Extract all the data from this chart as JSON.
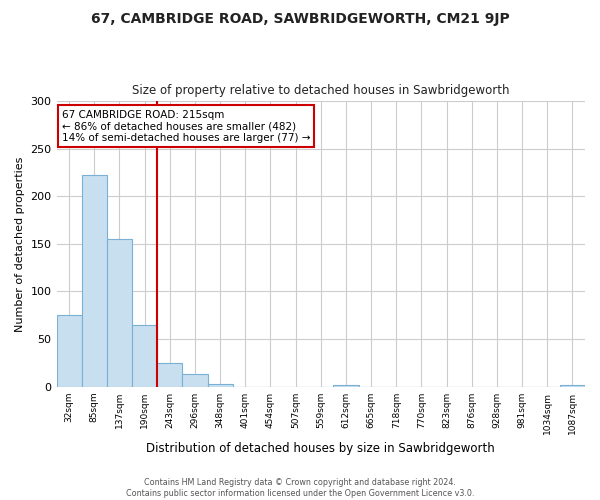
{
  "title": "67, CAMBRIDGE ROAD, SAWBRIDGEWORTH, CM21 9JP",
  "subtitle": "Size of property relative to detached houses in Sawbridgeworth",
  "xlabel": "Distribution of detached houses by size in Sawbridgeworth",
  "ylabel": "Number of detached properties",
  "bin_labels": [
    "32sqm",
    "85sqm",
    "137sqm",
    "190sqm",
    "243sqm",
    "296sqm",
    "348sqm",
    "401sqm",
    "454sqm",
    "507sqm",
    "559sqm",
    "612sqm",
    "665sqm",
    "718sqm",
    "770sqm",
    "823sqm",
    "876sqm",
    "928sqm",
    "981sqm",
    "1034sqm",
    "1087sqm"
  ],
  "bar_values": [
    75,
    222,
    155,
    65,
    25,
    13,
    3,
    0,
    0,
    0,
    0,
    2,
    0,
    0,
    0,
    0,
    0,
    0,
    0,
    0,
    2
  ],
  "bar_color": "#c8dff0",
  "bar_edgecolor": "#7ab0d4",
  "vline_color": "#cc0000",
  "vline_x": 3.5,
  "ylim": [
    0,
    300
  ],
  "yticks": [
    0,
    50,
    100,
    150,
    200,
    250,
    300
  ],
  "annotation_title": "67 CAMBRIDGE ROAD: 215sqm",
  "annotation_line1": "← 86% of detached houses are smaller (482)",
  "annotation_line2": "14% of semi-detached houses are larger (77) →",
  "annotation_box_color": "#ffffff",
  "annotation_box_edgecolor": "#cc0000",
  "footer_line1": "Contains HM Land Registry data © Crown copyright and database right 2024.",
  "footer_line2": "Contains public sector information licensed under the Open Government Licence v3.0.",
  "background_color": "#ffffff",
  "grid_color": "#cccccc"
}
